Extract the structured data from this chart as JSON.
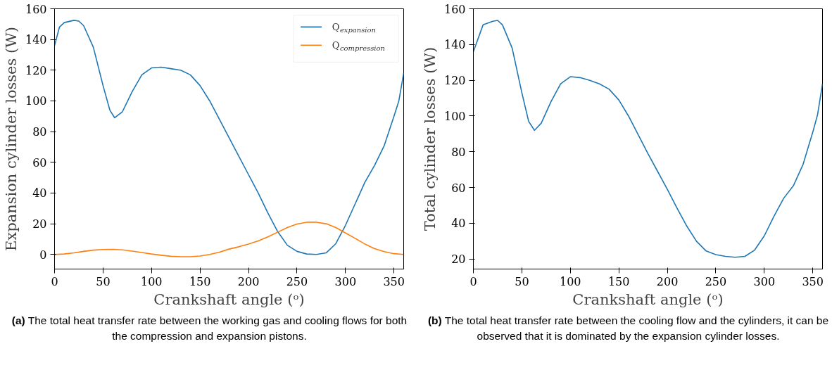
{
  "chart_data": [
    {
      "type": "line",
      "xlabel": "Crankshaft angle (ᵒ)",
      "ylabel": "Expansion cylinder losses (W)",
      "x": [
        0,
        5,
        10,
        20,
        25,
        30,
        40,
        50,
        57,
        62,
        70,
        80,
        90,
        100,
        110,
        120,
        130,
        140,
        150,
        160,
        170,
        180,
        190,
        200,
        210,
        220,
        230,
        240,
        250,
        260,
        270,
        280,
        290,
        300,
        310,
        320,
        330,
        340,
        350,
        355,
        360
      ],
      "series": [
        {
          "name": "Q$_{expansion}$",
          "color": "#1f77b4",
          "values": [
            136,
            148,
            151,
            152.5,
            152,
            149,
            135,
            110,
            94,
            89,
            93,
            106,
            117,
            121.5,
            122,
            121,
            120,
            117,
            110,
            100,
            88,
            76,
            64,
            52,
            40,
            27,
            15,
            6,
            2,
            0.3,
            0,
            1,
            7,
            19,
            33,
            47,
            58,
            71,
            90,
            100,
            118
          ]
        },
        {
          "name": "Q$_{compression}$",
          "color": "#ff7f0e",
          "x": [
            0,
            10,
            20,
            30,
            40,
            50,
            60,
            70,
            80,
            90,
            100,
            110,
            120,
            130,
            140,
            150,
            160,
            170,
            180,
            190,
            200,
            210,
            220,
            230,
            240,
            250,
            260,
            270,
            280,
            290,
            300,
            310,
            320,
            330,
            340,
            350,
            360
          ],
          "values": [
            0,
            0.3,
            1,
            2,
            2.8,
            3.2,
            3.3,
            3,
            2.2,
            1.3,
            0.3,
            -0.5,
            -1.2,
            -1.5,
            -1.5,
            -1,
            0,
            1.5,
            3.5,
            5,
            6.8,
            8.8,
            11.5,
            14.5,
            17.5,
            19.8,
            21,
            21,
            20,
            17.5,
            14,
            10.5,
            6.8,
            3.8,
            1.8,
            0.5,
            0
          ]
        }
      ],
      "xlim": [
        0,
        360
      ],
      "xticks": [
        0,
        50,
        100,
        150,
        200,
        250,
        300,
        350
      ],
      "ylim": [
        -9.5,
        160
      ],
      "yticks": [
        0,
        20,
        40,
        60,
        80,
        100,
        120,
        140,
        160
      ],
      "grid": false,
      "legend": "top right",
      "annotations": [
        "(a) The total heat transfer rate between the working gas and cooling flows for both the compression and expansion pistons."
      ]
    },
    {
      "type": "line",
      "xlabel": "Crankshaft angle (ᵒ)",
      "ylabel": "Total cylinder losses (W)",
      "x": [
        0,
        10,
        20,
        25,
        30,
        40,
        50,
        57,
        63,
        70,
        80,
        90,
        100,
        110,
        120,
        130,
        140,
        150,
        160,
        170,
        180,
        190,
        200,
        210,
        220,
        230,
        240,
        250,
        260,
        270,
        280,
        290,
        300,
        310,
        320,
        330,
        340,
        350,
        355,
        360
      ],
      "series": [
        {
          "color": "#1f77b4",
          "values": [
            136,
            151,
            153,
            153.5,
            151,
            138,
            113,
            97,
            92,
            96,
            108,
            118,
            122,
            121.5,
            120,
            118,
            115,
            109,
            100,
            89.5,
            79,
            69,
            59,
            48.5,
            38.5,
            30,
            24.5,
            22.5,
            21.5,
            21,
            21.5,
            25,
            33,
            44,
            54,
            61,
            73,
            91,
            101,
            118
          ]
        }
      ],
      "xlim": [
        0,
        360
      ],
      "xticks": [
        0,
        50,
        100,
        150,
        200,
        250,
        300,
        350
      ],
      "ylim": [
        14.4,
        160
      ],
      "yticks": [
        20,
        40,
        60,
        80,
        100,
        120,
        140,
        160
      ],
      "grid": false,
      "annotations": [
        "(b) The total heat transfer rate between the cooling flow and the cylinders, it can be observed that it is dominated by the expansion cylinder losses."
      ]
    }
  ]
}
